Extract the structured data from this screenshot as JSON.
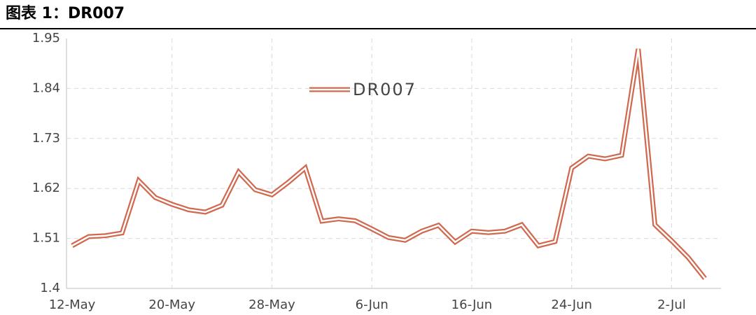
{
  "chart_data": {
    "type": "line",
    "title": "图表 1：DR007",
    "categories": [
      "12-May",
      null,
      null,
      null,
      null,
      null,
      "20-May",
      null,
      null,
      null,
      null,
      null,
      "28-May",
      null,
      null,
      null,
      null,
      null,
      "6-Jun",
      null,
      null,
      null,
      null,
      null,
      "16-Jun",
      null,
      null,
      null,
      null,
      null,
      "24-Jun",
      null,
      null,
      null,
      null,
      null,
      "2-Jul",
      null,
      null
    ],
    "series": [
      {
        "name": "DR007",
        "color": "#d0694f",
        "values": [
          1.494,
          1.514,
          1.516,
          1.522,
          1.637,
          1.6,
          1.585,
          1.573,
          1.568,
          1.583,
          1.656,
          1.617,
          1.606,
          1.634,
          1.665,
          1.548,
          1.553,
          1.549,
          1.531,
          1.512,
          1.506,
          1.526,
          1.539,
          1.502,
          1.526,
          1.523,
          1.526,
          1.54,
          1.494,
          1.503,
          1.665,
          1.691,
          1.685,
          1.693,
          1.927,
          1.54,
          1.505,
          1.468,
          1.422
        ]
      }
    ],
    "ylim": [
      1.4,
      1.95
    ],
    "yticks": [
      {
        "value": 1.4,
        "label": "1.4"
      },
      1.51,
      1.62,
      1.73,
      1.84,
      1.95
    ],
    "grid": true
  }
}
